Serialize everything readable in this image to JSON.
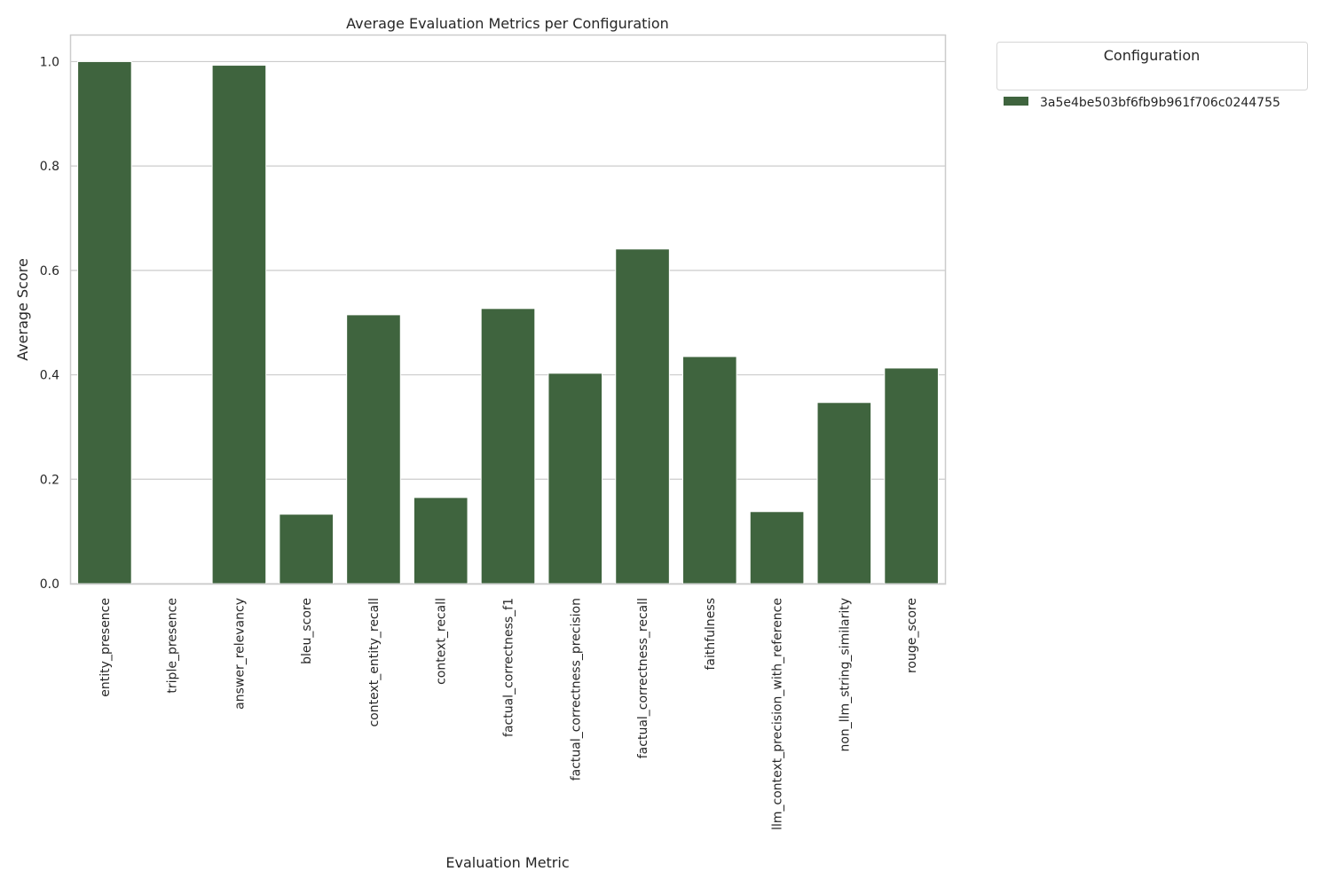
{
  "chart_data": {
    "type": "bar",
    "title": "Average Evaluation Metrics per Configuration",
    "xlabel": "Evaluation Metric",
    "ylabel": "Average Score",
    "categories": [
      "entity_presence",
      "triple_presence",
      "answer_relevancy",
      "bleu_score",
      "context_entity_recall",
      "context_recall",
      "factual_correctness_f1",
      "factual_correctness_precision",
      "factual_correctness_recall",
      "faithfulness",
      "llm_context_precision_with_reference",
      "non_llm_string_similarity",
      "rouge_score"
    ],
    "series": [
      {
        "name": "3a5e4be503bf6fb9b961f706c0244755",
        "color": "#3f643e",
        "values": [
          1.0,
          0.0,
          0.993,
          0.133,
          0.515,
          0.165,
          0.527,
          0.403,
          0.641,
          0.435,
          0.138,
          0.347,
          0.413
        ]
      }
    ],
    "ylim": [
      0,
      1.05
    ],
    "yticks": [
      0.0,
      0.2,
      0.4,
      0.6,
      0.8,
      1.0
    ],
    "ytick_labels": [
      "0.0",
      "0.2",
      "0.4",
      "0.6",
      "0.8",
      "1.0"
    ],
    "grid": "horizontal",
    "legend": {
      "title": "Configuration",
      "placement": "outside-top-right"
    }
  }
}
